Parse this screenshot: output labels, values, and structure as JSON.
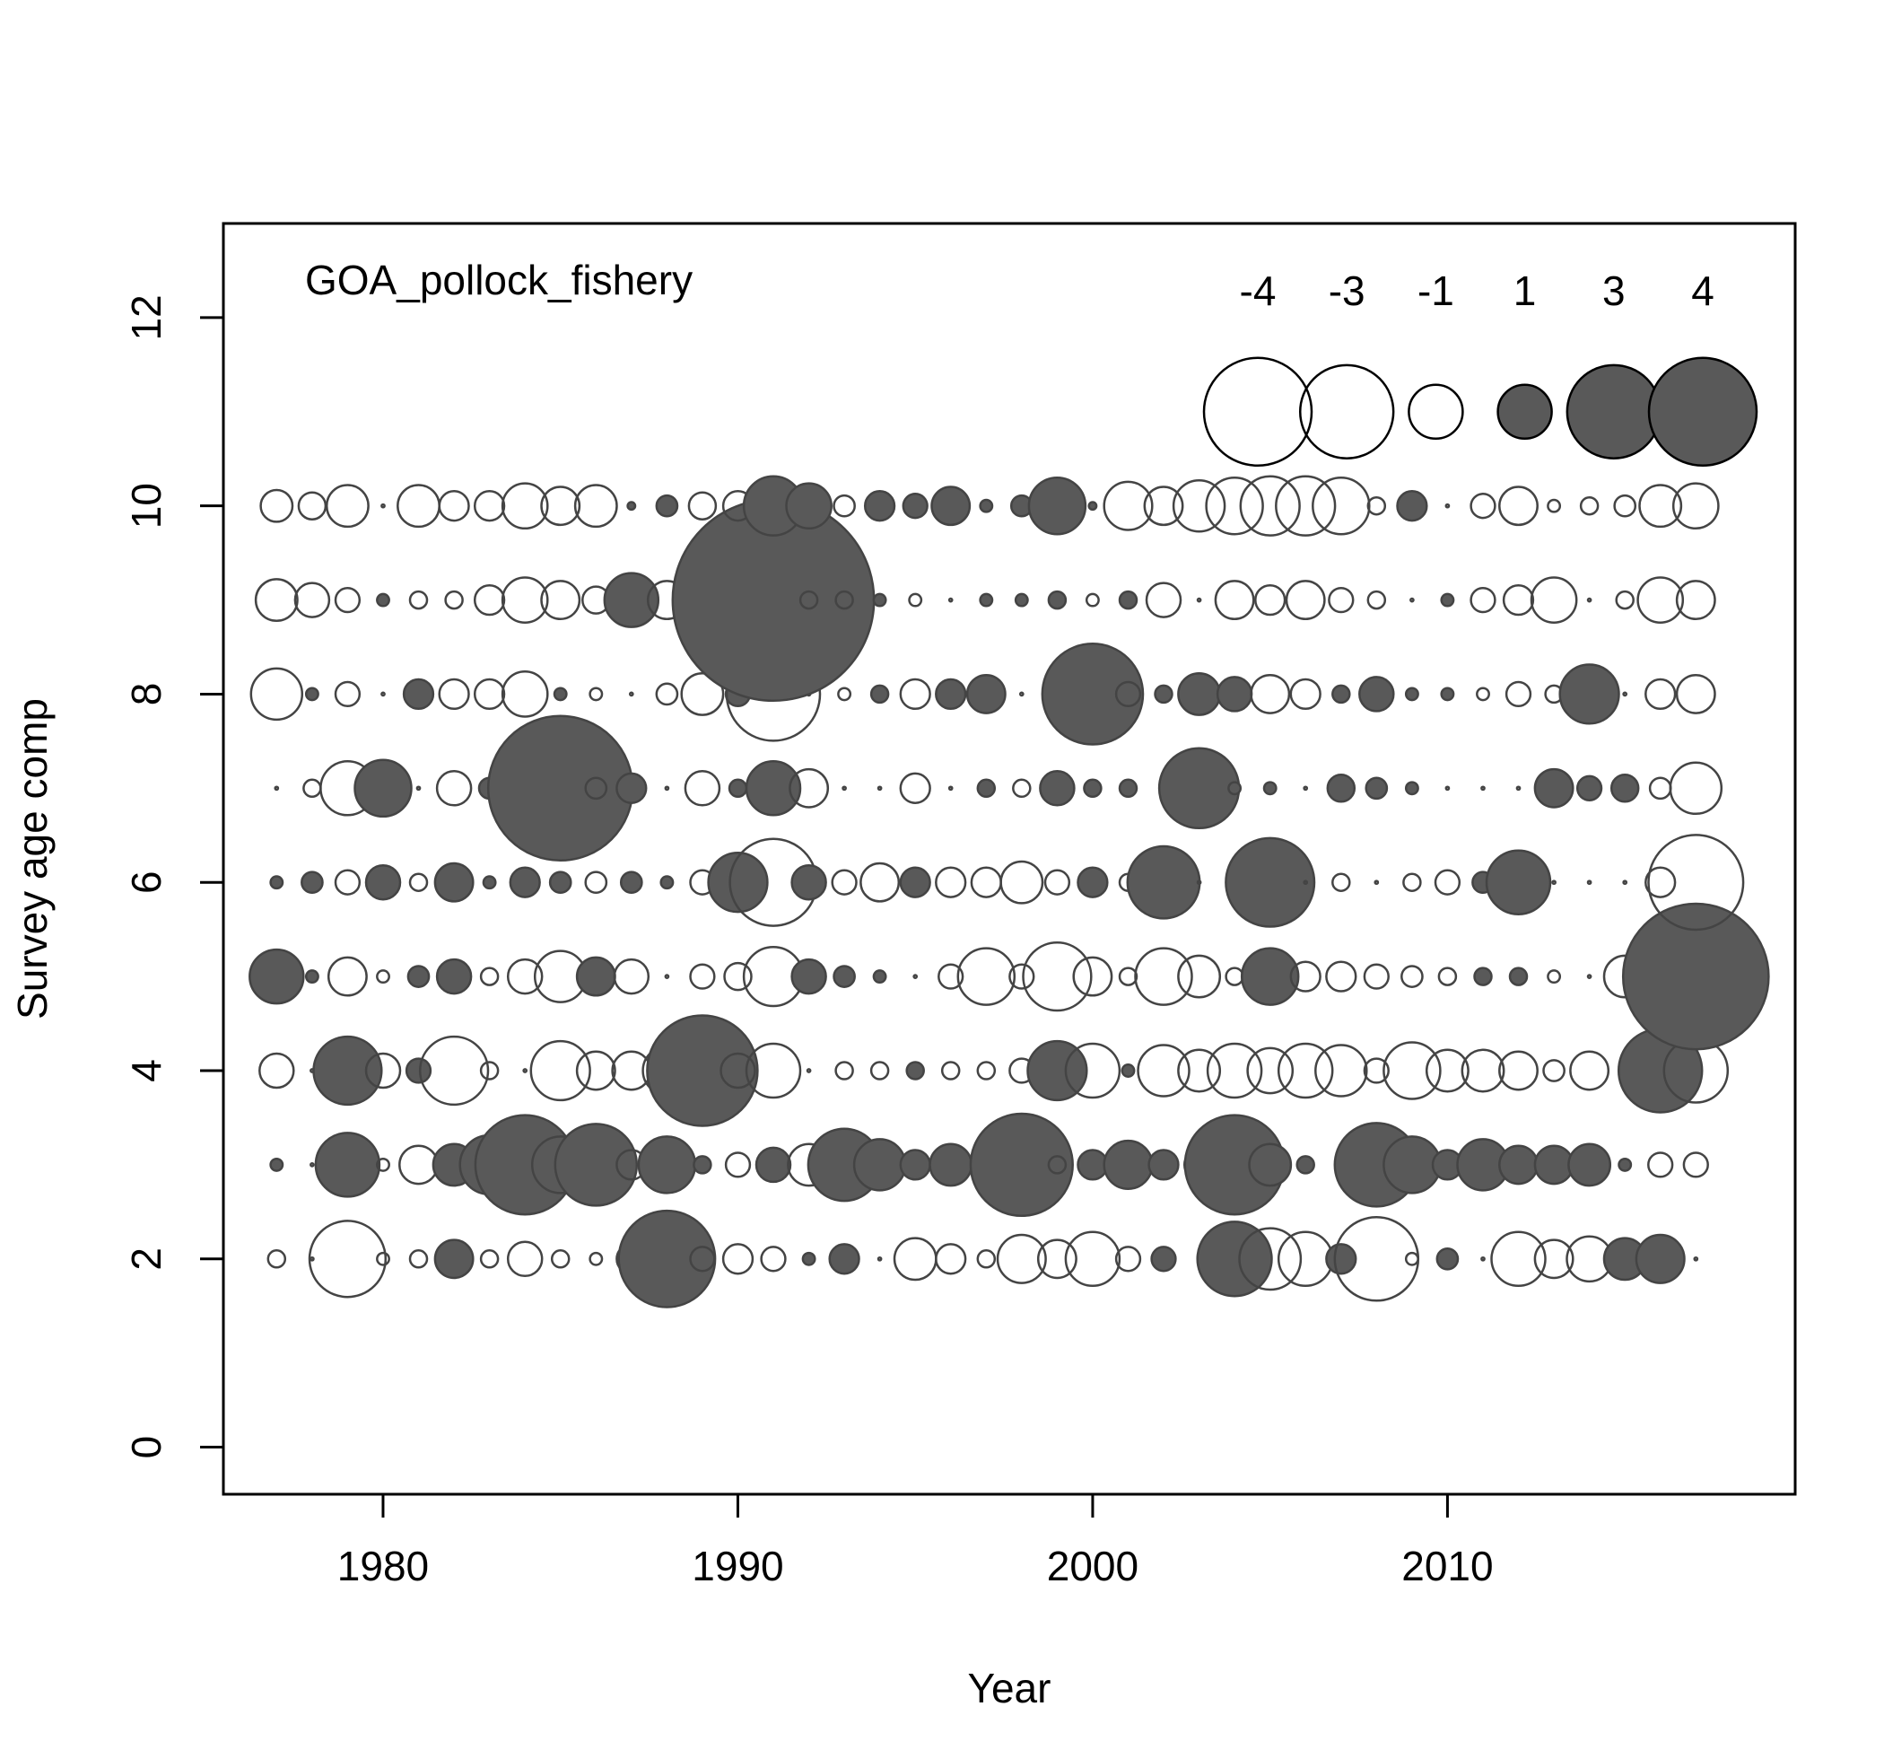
{
  "chart_data": {
    "type": "scatter",
    "subtype": "bubble",
    "annotation": "GOA_pollock_fishery",
    "xlabel": "Year",
    "ylabel": "Survey age comp",
    "xlim": [
      1975.5,
      2019.8
    ],
    "ylim": [
      -0.5,
      13
    ],
    "x_ticks": [
      1980,
      1990,
      2000,
      2010
    ],
    "y_ticks": [
      0,
      2,
      4,
      6,
      8,
      10,
      12
    ],
    "grid": false,
    "legend": {
      "placement": "top-right",
      "entries": [
        {
          "label": "-4",
          "value": -4
        },
        {
          "label": "-3",
          "value": -3
        },
        {
          "label": "-1",
          "value": -1
        },
        {
          "label": "1",
          "value": 1
        },
        {
          "label": "3",
          "value": 3
        },
        {
          "label": "4",
          "value": 4
        }
      ]
    },
    "colors": {
      "positive_fill": "#595959",
      "negative_fill": "#ffffff",
      "stroke": "#444444"
    },
    "size_encoding": "area proportional to absolute residual; filled = positive, open = negative",
    "years": [
      1977,
      1978,
      1979,
      1980,
      1981,
      1982,
      1983,
      1984,
      1985,
      1986,
      1987,
      1988,
      1989,
      1990,
      1991,
      1992,
      1993,
      1994,
      1995,
      1996,
      1997,
      1998,
      1999,
      2000,
      2001,
      2002,
      2003,
      2004,
      2005,
      2006,
      2007,
      2008,
      2009,
      2010,
      2011,
      2012,
      2013,
      2014,
      2015,
      2016,
      2017
    ],
    "series": [
      {
        "age": 2,
        "residuals": [
          -0.1,
          0,
          -2.0,
          -0.05,
          -0.1,
          0.5,
          -0.1,
          -0.4,
          -0.1,
          -0.05,
          0.3,
          3.2,
          -0.2,
          -0.3,
          -0.2,
          0.05,
          0.3,
          0,
          -0.6,
          -0.3,
          -0.1,
          -0.8,
          -0.5,
          -1.0,
          -0.2,
          0.2,
          0,
          1.9,
          -1.3,
          -1.0,
          0.3,
          -2.4,
          -0.05,
          0.15,
          0,
          -1.0,
          -0.5,
          -0.7,
          0.6,
          0.8,
          0
        ]
      },
      {
        "age": 3,
        "residuals": [
          0.05,
          0,
          1.4,
          -0.05,
          -0.5,
          0.6,
          1.2,
          3.4,
          -1.1,
          2.3,
          -0.3,
          1.1,
          0.1,
          -0.2,
          0.4,
          -0.6,
          1.8,
          0.9,
          0.3,
          0.6,
          0.1,
          3.6,
          -0.1,
          0.3,
          0.8,
          0.3,
          0.3,
          3.4,
          0.6,
          0.1,
          0,
          2.4,
          1.1,
          0.3,
          0.9,
          0.5,
          0.5,
          0.6,
          0.05,
          -0.2,
          -0.2
        ]
      },
      {
        "age": 4,
        "residuals": [
          -0.4,
          0,
          1.6,
          -0.4,
          0.2,
          -1.6,
          -0.1,
          0,
          -1.2,
          -0.5,
          -0.5,
          -0.8,
          4.2,
          -0.4,
          -1.0,
          0,
          -0.1,
          -0.1,
          0.1,
          -0.1,
          -0.1,
          -0.2,
          1.2,
          -1.0,
          0.05,
          -0.9,
          -0.6,
          -1.0,
          -0.7,
          -1.0,
          -0.9,
          -0.2,
          -1.1,
          -0.6,
          -0.6,
          -0.5,
          -0.15,
          -0.5,
          0,
          2.4,
          -1.4
        ]
      },
      {
        "age": 5,
        "residuals": [
          1.0,
          0.05,
          -0.5,
          -0.05,
          0.15,
          0.4,
          -0.1,
          -0.4,
          -0.9,
          0.5,
          -0.4,
          0,
          -0.2,
          -0.25,
          -1.2,
          0.4,
          0.15,
          0.05,
          0,
          -0.2,
          -1.1,
          -0.2,
          -1.6,
          -0.5,
          -0.1,
          -1.1,
          -0.6,
          -0.1,
          1.1,
          -0.3,
          -0.3,
          -0.2,
          -0.15,
          -0.1,
          0.1,
          0.1,
          -0.05,
          0,
          -0.6,
          -1.0,
          7.3
        ]
      },
      {
        "age": 6,
        "residuals": [
          0.05,
          0.15,
          -0.2,
          0.4,
          -0.1,
          0.5,
          0.05,
          0.3,
          0.15,
          -0.15,
          0.15,
          0.05,
          -0.2,
          1.2,
          -2.6,
          0.4,
          -0.2,
          -0.5,
          0.3,
          -0.3,
          -0.3,
          -0.6,
          -0.2,
          0.3,
          -0.1,
          1.8,
          0,
          0,
          2.7,
          0,
          -0.1,
          0,
          -0.1,
          -0.2,
          0.15,
          1.4,
          0,
          0,
          0,
          -0.3,
          -3.1
        ]
      },
      {
        "age": 7,
        "residuals": [
          0,
          -0.1,
          -1.0,
          1.1,
          0,
          -0.4,
          0.15,
          0,
          7.2,
          -0.15,
          0.3,
          0,
          -0.4,
          0.1,
          1.0,
          -0.5,
          0,
          0,
          -0.3,
          0,
          0.1,
          -0.1,
          0.4,
          0.1,
          0.1,
          0,
          2.2,
          0.05,
          0.05,
          0,
          0.25,
          0.15,
          0.05,
          0,
          0,
          0,
          0.5,
          0.2,
          0.25,
          -0.15,
          -0.9
        ]
      },
      {
        "age": 8,
        "residuals": [
          -0.9,
          0.05,
          -0.2,
          0,
          0.3,
          -0.3,
          -0.3,
          -0.7,
          0.05,
          -0.05,
          0,
          -0.15,
          -0.6,
          0.2,
          -3.0,
          0,
          -0.05,
          0.1,
          -0.3,
          0.3,
          0.5,
          0,
          0,
          3.5,
          0.2,
          0.1,
          0.6,
          0.4,
          -0.5,
          -0.3,
          0.1,
          0.4,
          0.05,
          0.05,
          -0.05,
          -0.2,
          -0.1,
          1.2,
          0,
          -0.3,
          -0.5
        ]
      },
      {
        "age": 9,
        "residuals": [
          -0.6,
          -0.4,
          -0.2,
          0.05,
          -0.1,
          -0.1,
          -0.3,
          -0.7,
          -0.5,
          -0.25,
          1.0,
          -0.5,
          -0.7,
          -0.9,
          14.0,
          -0.1,
          -0.1,
          0.05,
          -0.05,
          0,
          0.05,
          0.05,
          0.1,
          -0.05,
          0.1,
          -0.4,
          0,
          -0.5,
          -0.3,
          -0.5,
          -0.2,
          -0.1,
          0,
          0.05,
          -0.2,
          -0.3,
          -0.7,
          0,
          -0.1,
          -0.7,
          -0.5
        ]
      },
      {
        "age": 10,
        "residuals": [
          -0.35,
          -0.25,
          -0.6,
          0,
          -0.6,
          -0.3,
          -0.3,
          -0.7,
          -0.5,
          -0.6,
          0.02,
          0.15,
          -0.25,
          -0.3,
          1.2,
          0.7,
          -0.15,
          0.3,
          0.2,
          0.5,
          0.05,
          0.15,
          1.1,
          0.02,
          -0.8,
          -0.5,
          -0.9,
          -1.1,
          -1.2,
          -1.2,
          -1.1,
          -0.1,
          0.3,
          0,
          -0.2,
          -0.5,
          -0.05,
          -0.1,
          -0.15,
          -0.6,
          -0.7
        ]
      }
    ]
  }
}
